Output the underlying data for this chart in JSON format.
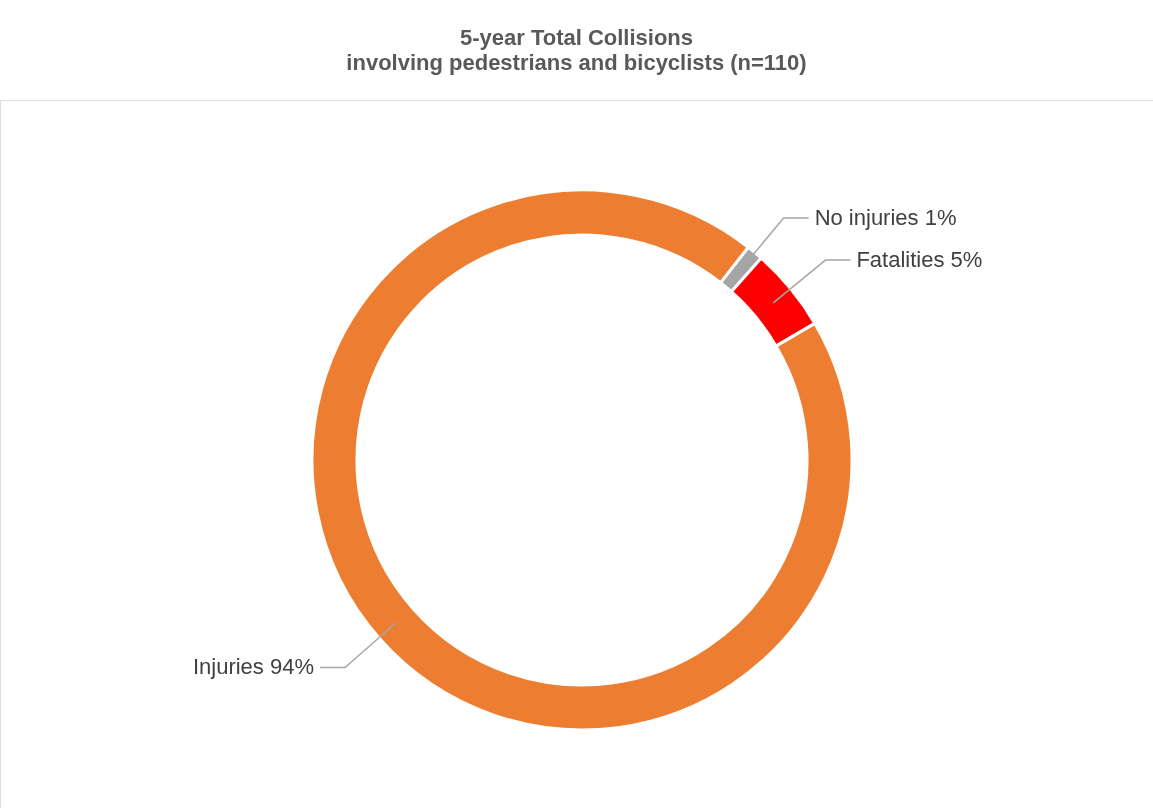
{
  "chart_data": {
    "type": "donut",
    "title": "5-year Total Collisions",
    "subtitle": "involving pedestrians and bicyclists (n=110)",
    "categories": [
      "No injuries",
      "Fatalities",
      "Injuries"
    ],
    "values": [
      1,
      5,
      94
    ],
    "value_labels": [
      "1%",
      "5%",
      "94%"
    ],
    "colors": [
      "#a5a5a5",
      "#ff0000",
      "#ed7d31"
    ],
    "legend": false
  }
}
